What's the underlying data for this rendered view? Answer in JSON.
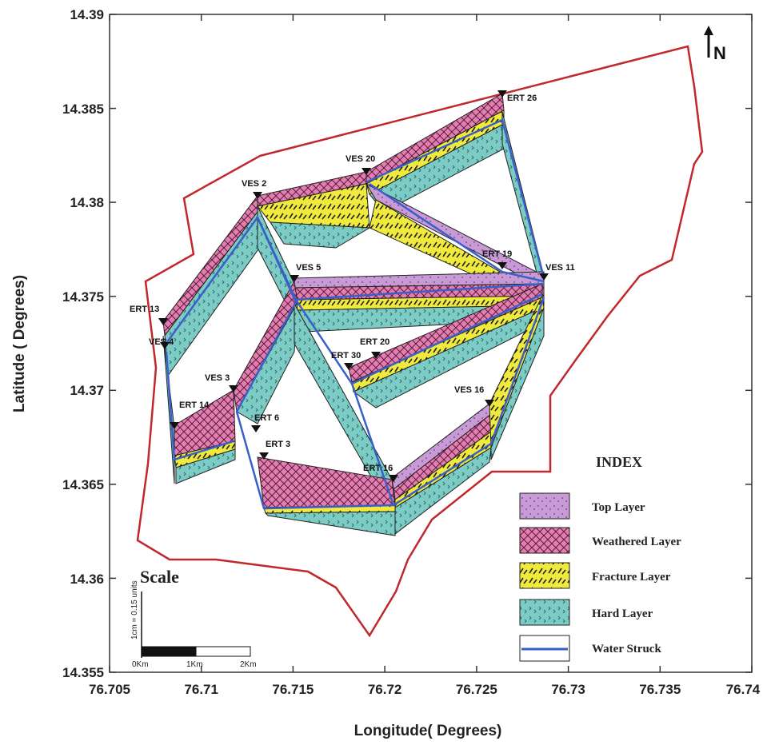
{
  "axes": {
    "xlabel": "Longitude( Degrees)",
    "ylabel": "Latitude ( Degrees)",
    "x_ticks": [
      "76.705",
      "76.71",
      "76.715",
      "76.72",
      "76.725",
      "76.73",
      "76.735",
      "76.74"
    ],
    "y_ticks": [
      "14.39",
      "14.385",
      "14.38",
      "14.375",
      "14.37",
      "14.365",
      "14.36",
      "14.355"
    ]
  },
  "north_arrow": {
    "label": "N"
  },
  "stations": [
    {
      "label": "ERT 26"
    },
    {
      "label": "VES 20"
    },
    {
      "label": "VES 2"
    },
    {
      "label": "ERT 19"
    },
    {
      "label": "VES 11"
    },
    {
      "label": "VES 5"
    },
    {
      "label": "ERT 13"
    },
    {
      "label": "VES 4"
    },
    {
      "label": "ERT 20"
    },
    {
      "label": "ERT 30"
    },
    {
      "label": "VES 3"
    },
    {
      "label": "VES 16"
    },
    {
      "label": "ERT 14"
    },
    {
      "label": "ERT 6"
    },
    {
      "label": "ERT 3"
    },
    {
      "label": "ERT 16"
    }
  ],
  "legend": {
    "title": "INDEX",
    "items": [
      {
        "label": "Top Layer",
        "color": "#c89ad6"
      },
      {
        "label": "Weathered Layer",
        "color": "#e37fb0"
      },
      {
        "label": "Fracture Layer",
        "color": "#f0ea3c"
      },
      {
        "label": "Hard Layer",
        "color": "#7ccbc4"
      },
      {
        "label": "Water Struck",
        "color": "#3a5fc8"
      }
    ]
  },
  "scale": {
    "title": "Scale",
    "ticks": [
      "0Km",
      "1Km",
      "2Km"
    ],
    "vertical_label": "1cm = 0.15 units"
  },
  "colors": {
    "boundary": "#c0282b",
    "top_layer": "#c89ad6",
    "weathered": "#e37fb0",
    "fracture": "#f0ea3c",
    "hard": "#7ccbc4",
    "water": "#3a5fc8"
  }
}
